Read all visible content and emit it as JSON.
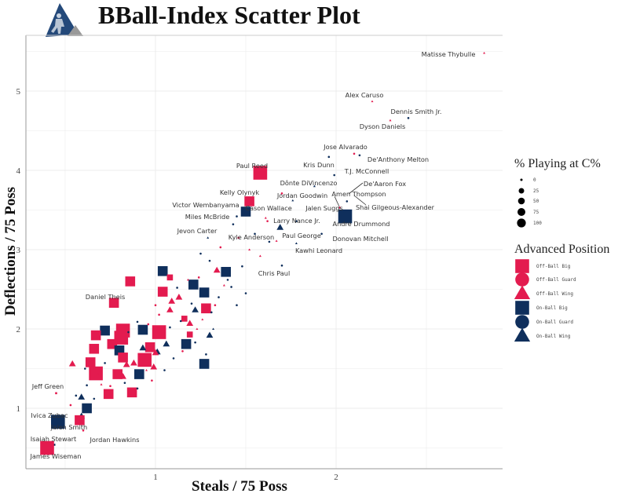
{
  "chart_data": {
    "type": "scatter",
    "title": "BBall-Index Scatter Plot",
    "xlabel": "Steals / 75 Poss",
    "ylabel": "Deflections / 75 Poss",
    "xlim": [
      0.28,
      2.92
    ],
    "ylim": [
      0.24,
      5.7
    ],
    "xticks": [
      "1",
      "2"
    ],
    "yticks": [
      "1",
      "2",
      "3",
      "4",
      "5"
    ],
    "grid": true,
    "colors": {
      "off": "#e31b4f",
      "on": "#0f2f5c",
      "grid": "#ebebeb"
    },
    "legend": {
      "placement": "right",
      "size_title": "% Playing at C%",
      "size_levels": [
        "0",
        "25",
        "50",
        "75",
        "100"
      ],
      "position_title": "Advanced Position",
      "positions": [
        "Off-Ball  Big",
        "Off-Ball  Guard",
        "Off-Ball  Wing",
        "On-Ball  Big",
        "On-Ball  Guard",
        "On-Ball  Wing"
      ]
    },
    "labeled_points": [
      {
        "name": "Matisse Thybulle",
        "x": 2.82,
        "y": 5.48,
        "pos": 2,
        "c": 0
      },
      {
        "name": "Alex Caruso",
        "x": 2.2,
        "y": 4.87,
        "pos": 2,
        "c": 0
      },
      {
        "name": "Dennis Smith Jr.",
        "x": 2.4,
        "y": 4.66,
        "pos": 4,
        "c": 0
      },
      {
        "name": "Dyson Daniels",
        "x": 2.3,
        "y": 4.63,
        "pos": 2,
        "c": 0
      },
      {
        "name": "Jose Alvarado",
        "x": 2.1,
        "y": 4.21,
        "pos": 1,
        "c": 0
      },
      {
        "name": "De'Anthony Melton",
        "x": 2.13,
        "y": 4.19,
        "pos": 4,
        "c": 0
      },
      {
        "name": "Kris Dunn",
        "x": 1.96,
        "y": 4.17,
        "pos": 4,
        "c": 0
      },
      {
        "name": "T.J. McConnell",
        "x": 1.99,
        "y": 3.94,
        "pos": 4,
        "c": 0
      },
      {
        "name": "Paul Reed",
        "x": 1.58,
        "y": 3.97,
        "pos": 0,
        "c": 75
      },
      {
        "name": "Dônte DiVincenzo",
        "x": 1.88,
        "y": 3.8,
        "pos": 5,
        "c": 0
      },
      {
        "name": "De'Aaron Fox",
        "x": 2.06,
        "y": 3.61,
        "pos": 4,
        "c": 0
      },
      {
        "name": "Kelly Olynyk",
        "x": 1.52,
        "y": 3.61,
        "pos": 0,
        "c": 50
      },
      {
        "name": "Jordan Goodwin",
        "x": 1.7,
        "y": 3.71,
        "pos": 1,
        "c": 0
      },
      {
        "name": "Amen Thompson",
        "x": 1.76,
        "y": 3.62,
        "pos": 5,
        "c": 0
      },
      {
        "name": "Victor Wembanyama",
        "x": 1.5,
        "y": 3.48,
        "pos": 3,
        "c": 50
      },
      {
        "name": "Shai Gilgeous-Alexander",
        "x": 2.02,
        "y": 3.53,
        "pos": 1,
        "c": 0
      },
      {
        "name": "Cason Wallace",
        "x": 1.62,
        "y": 3.36,
        "pos": 1,
        "c": 0
      },
      {
        "name": "Jalen Suggs",
        "x": 1.78,
        "y": 3.36,
        "pos": 4,
        "c": 0
      },
      {
        "name": "Miles McBride",
        "x": 1.45,
        "y": 3.42,
        "pos": 4,
        "c": 0
      },
      {
        "name": "Larry Nance Jr.",
        "x": 1.69,
        "y": 3.28,
        "pos": 5,
        "c": 25
      },
      {
        "name": "Andre Drummond",
        "x": 2.05,
        "y": 3.42,
        "pos": 3,
        "c": 75
      },
      {
        "name": "Jevon Carter",
        "x": 1.29,
        "y": 3.15,
        "pos": 5,
        "c": 0
      },
      {
        "name": "Kyle Anderson",
        "x": 1.63,
        "y": 3.1,
        "pos": 4,
        "c": 0
      },
      {
        "name": "Paul George",
        "x": 1.67,
        "y": 3.11,
        "pos": 2,
        "c": 0
      },
      {
        "name": "Donovan Mitchell",
        "x": 1.92,
        "y": 3.2,
        "pos": 4,
        "c": 0
      },
      {
        "name": "Kawhi Leonard",
        "x": 1.78,
        "y": 3.08,
        "pos": 5,
        "c": 0
      },
      {
        "name": "Chris Paul",
        "x": 1.7,
        "y": 2.8,
        "pos": 4,
        "c": 0
      },
      {
        "name": "Daniel Theis",
        "x": 0.77,
        "y": 2.33,
        "pos": 0,
        "c": 50
      },
      {
        "name": "Jeff Green",
        "x": 0.45,
        "y": 1.19,
        "pos": 0,
        "c": 0
      },
      {
        "name": "Ivica Zubac",
        "x": 0.46,
        "y": 0.83,
        "pos": 3,
        "c": 75
      },
      {
        "name": "Jalen Smith",
        "x": 0.58,
        "y": 0.85,
        "pos": 0,
        "c": 50
      },
      {
        "name": "Isaiah Stewart",
        "x": 0.44,
        "y": 0.54,
        "pos": 3,
        "c": 0
      },
      {
        "name": "Jordan Hawkins",
        "x": 0.6,
        "y": 0.72,
        "pos": 1,
        "c": 0
      },
      {
        "name": "James Wiseman",
        "x": 0.4,
        "y": 0.5,
        "pos": 0,
        "c": 75
      }
    ],
    "other_points": [
      [
        1.04,
        2.73,
        3,
        50
      ],
      [
        1.08,
        2.65,
        0,
        25
      ],
      [
        0.86,
        2.6,
        0,
        50
      ],
      [
        1.39,
        2.72,
        3,
        50
      ],
      [
        1.21,
        2.56,
        3,
        50
      ],
      [
        1.04,
        2.47,
        0,
        50
      ],
      [
        1.27,
        2.46,
        3,
        50
      ],
      [
        1.22,
        2.24,
        5,
        25
      ],
      [
        1.28,
        2.26,
        0,
        50
      ],
      [
        1.08,
        2.24,
        2,
        25
      ],
      [
        1.34,
        2.74,
        2,
        25
      ],
      [
        0.72,
        1.98,
        3,
        50
      ],
      [
        0.82,
        1.98,
        0,
        75
      ],
      [
        0.93,
        1.99,
        3,
        50
      ],
      [
        1.02,
        1.96,
        0,
        75
      ],
      [
        0.67,
        1.92,
        0,
        50
      ],
      [
        0.81,
        1.89,
        0,
        75
      ],
      [
        0.76,
        1.81,
        0,
        50
      ],
      [
        0.66,
        1.75,
        0,
        50
      ],
      [
        0.8,
        1.73,
        3,
        50
      ],
      [
        0.97,
        1.77,
        0,
        50
      ],
      [
        1.17,
        1.81,
        3,
        50
      ],
      [
        0.82,
        1.64,
        0,
        50
      ],
      [
        0.94,
        1.61,
        0,
        75
      ],
      [
        0.64,
        1.58,
        0,
        50
      ],
      [
        0.67,
        1.44,
        0,
        75
      ],
      [
        0.79,
        1.43,
        0,
        50
      ],
      [
        0.91,
        1.43,
        3,
        50
      ],
      [
        0.82,
        1.4,
        2,
        25
      ],
      [
        1.27,
        1.56,
        3,
        50
      ],
      [
        1.19,
        1.93,
        0,
        25
      ],
      [
        0.74,
        1.18,
        0,
        50
      ],
      [
        0.87,
        1.2,
        0,
        50
      ],
      [
        0.62,
        1.0,
        3,
        50
      ],
      [
        0.54,
        1.56,
        2,
        25
      ],
      [
        0.99,
        1.52,
        2,
        25
      ],
      [
        1.01,
        1.71,
        5,
        25
      ],
      [
        0.59,
        0.9,
        5,
        25
      ],
      [
        0.59,
        1.14,
        5,
        25
      ],
      [
        1.3,
        1.92,
        5,
        25
      ],
      [
        1.32,
        2.0,
        5,
        0
      ],
      [
        0.84,
        1.55,
        2,
        25
      ],
      [
        1.0,
        1.7,
        2,
        25
      ],
      [
        0.88,
        1.57,
        2,
        25
      ],
      [
        1.19,
        2.07,
        2,
        25
      ],
      [
        1.13,
        2.4,
        2,
        25
      ],
      [
        1.09,
        2.35,
        2,
        25
      ],
      [
        1.16,
        2.13,
        0,
        25
      ],
      [
        0.93,
        1.76,
        5,
        25
      ],
      [
        1.06,
        1.81,
        5,
        25
      ],
      [
        0.96,
        2.06,
        1,
        0
      ],
      [
        1.02,
        2.18,
        1,
        0
      ],
      [
        1.14,
        2.1,
        4,
        0
      ],
      [
        1.2,
        2.32,
        4,
        0
      ],
      [
        1.31,
        2.21,
        4,
        0
      ],
      [
        1.35,
        2.4,
        4,
        0
      ],
      [
        1.42,
        2.53,
        4,
        0
      ],
      [
        1.45,
        2.3,
        4,
        0
      ],
      [
        1.4,
        2.62,
        4,
        0
      ],
      [
        1.48,
        2.79,
        4,
        0
      ],
      [
        1.3,
        2.86,
        4,
        0
      ],
      [
        1.25,
        2.95,
        4,
        0
      ],
      [
        1.36,
        3.03,
        1,
        0
      ],
      [
        1.46,
        3.15,
        1,
        0
      ],
      [
        1.52,
        3.0,
        2,
        0
      ],
      [
        1.55,
        3.2,
        4,
        0
      ],
      [
        1.58,
        2.92,
        2,
        0
      ],
      [
        1.61,
        3.4,
        2,
        0
      ],
      [
        1.43,
        3.32,
        4,
        0
      ],
      [
        1.24,
        2.65,
        1,
        0
      ],
      [
        1.12,
        2.52,
        4,
        0
      ],
      [
        1.0,
        2.3,
        1,
        0
      ],
      [
        0.9,
        2.09,
        4,
        0
      ],
      [
        0.85,
        1.96,
        4,
        0
      ],
      [
        0.78,
        1.7,
        4,
        0
      ],
      [
        0.72,
        1.57,
        4,
        0
      ],
      [
        0.68,
        1.43,
        1,
        0
      ],
      [
        0.62,
        1.29,
        4,
        0
      ],
      [
        0.56,
        1.16,
        4,
        0
      ],
      [
        0.53,
        1.04,
        1,
        0
      ],
      [
        0.66,
        1.12,
        4,
        0
      ],
      [
        0.75,
        1.28,
        1,
        0
      ],
      [
        0.83,
        1.32,
        4,
        0
      ],
      [
        0.9,
        1.25,
        4,
        0
      ],
      [
        0.98,
        1.35,
        1,
        0
      ],
      [
        1.05,
        1.48,
        4,
        0
      ],
      [
        1.1,
        1.63,
        4,
        0
      ],
      [
        1.15,
        1.72,
        1,
        0
      ],
      [
        1.22,
        1.83,
        4,
        0
      ],
      [
        1.28,
        1.68,
        4,
        0
      ],
      [
        1.26,
        2.12,
        2,
        0
      ],
      [
        1.33,
        2.3,
        1,
        0
      ],
      [
        1.5,
        2.45,
        4,
        0
      ],
      [
        1.38,
        2.55,
        2,
        0
      ],
      [
        1.18,
        2.62,
        2,
        0
      ],
      [
        0.95,
        1.48,
        2,
        0
      ],
      [
        0.7,
        1.3,
        2,
        0
      ],
      [
        0.61,
        1.5,
        4,
        0
      ],
      [
        1.08,
        2.02,
        4,
        0
      ],
      [
        1.23,
        2.0,
        2,
        0
      ]
    ]
  }
}
